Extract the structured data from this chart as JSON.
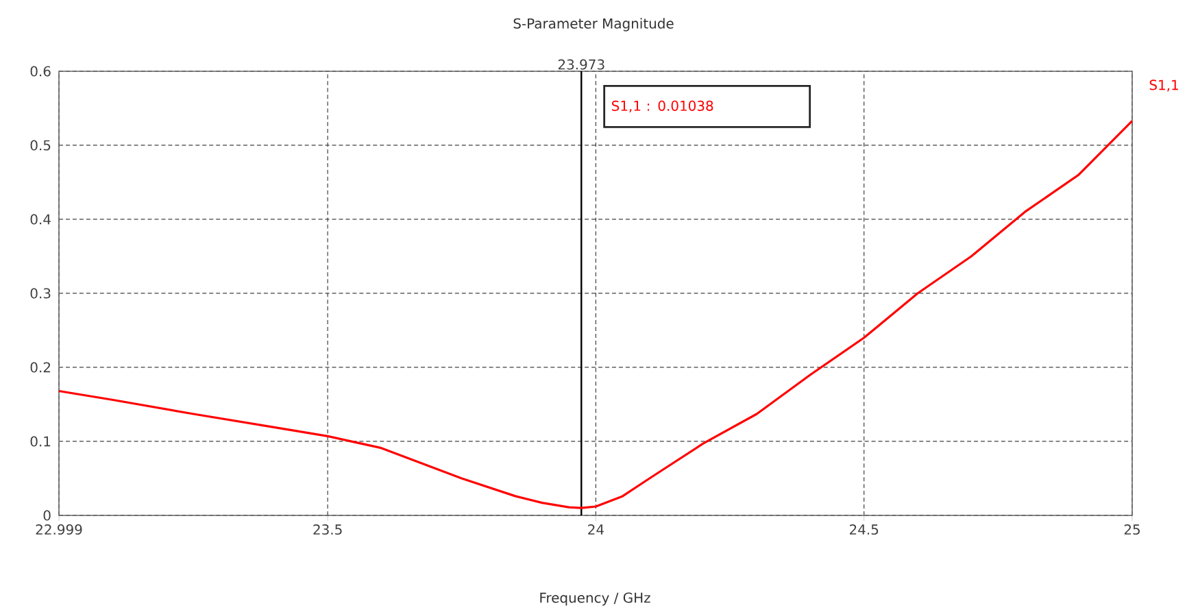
{
  "chart_data": {
    "type": "line",
    "title": "S-Parameter Magnitude",
    "xlabel": "Frequency / GHz",
    "xlim": [
      22.999,
      25
    ],
    "ylim": [
      0,
      0.6
    ],
    "xticks": [
      22.999,
      23.5,
      24,
      24.5,
      25
    ],
    "yticks": [
      0,
      0.1,
      0.2,
      0.3,
      0.4,
      0.5,
      0.6
    ],
    "grid": true,
    "marker": "none",
    "line_style": "solid",
    "ref_lines": [
      {
        "axis": "x",
        "value": 23.973,
        "label": "23.973",
        "color": "#000000",
        "line_style": "solid"
      }
    ],
    "annotations": [
      "S1,1 : 0.01038"
    ],
    "series": [
      {
        "name": "S1,1",
        "color": "#ff0000",
        "x": [
          22.999,
          23.1,
          23.25,
          23.4,
          23.5,
          23.6,
          23.75,
          23.85,
          23.9,
          23.95,
          23.973,
          24.0,
          24.05,
          24.1,
          24.2,
          24.3,
          24.4,
          24.5,
          24.6,
          24.7,
          24.8,
          24.9,
          25.0
        ],
        "values": [
          0.168,
          0.156,
          0.137,
          0.119,
          0.107,
          0.091,
          0.05,
          0.026,
          0.017,
          0.011,
          0.01,
          0.012,
          0.026,
          0.05,
          0.097,
          0.137,
          0.19,
          0.24,
          0.3,
          0.35,
          0.41,
          0.46,
          0.533
        ]
      }
    ]
  }
}
